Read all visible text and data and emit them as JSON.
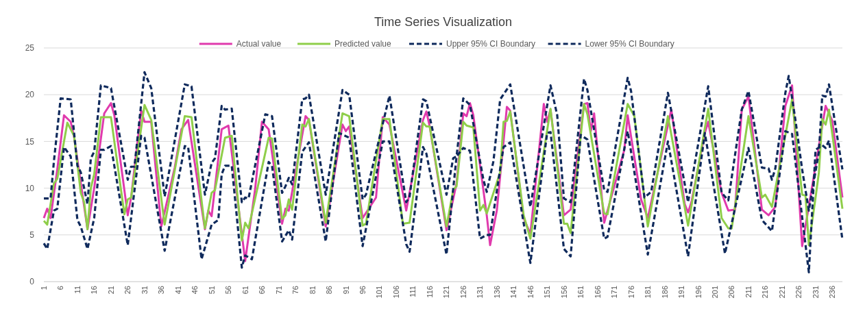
{
  "chart_data": {
    "type": "line",
    "title": "Time Series Visualization",
    "xlim": [
      1,
      239
    ],
    "xticks": [
      1,
      6,
      11,
      16,
      21,
      26,
      31,
      36,
      41,
      46,
      51,
      56,
      61,
      66,
      71,
      76,
      81,
      86,
      91,
      96,
      101,
      106,
      111,
      116,
      121,
      126,
      131,
      136,
      141,
      146,
      151,
      156,
      161,
      166,
      171,
      176,
      181,
      186,
      191,
      196,
      201,
      206,
      211,
      216,
      221,
      226,
      231,
      236
    ],
    "ylim": [
      0,
      25
    ],
    "yticks": [
      0,
      5,
      10,
      15,
      20,
      25
    ],
    "grid": "y",
    "legend": "top",
    "marker": "none",
    "series": [
      {
        "name": "Actual value",
        "color": "#e03aad",
        "line_style": "solid",
        "x": [
          1,
          2,
          3,
          5,
          7,
          9,
          10,
          14,
          16,
          19,
          21,
          22,
          26,
          27,
          30,
          31,
          33,
          36,
          40,
          42,
          44,
          49,
          50,
          51,
          54,
          56,
          61,
          64,
          66,
          68,
          72,
          73,
          74,
          79,
          80,
          85,
          90,
          91,
          92,
          96,
          100,
          102,
          104,
          109,
          114,
          115,
          116,
          121,
          124,
          126,
          127,
          128,
          129,
          133,
          134,
          136,
          139,
          140,
          144,
          146,
          150,
          151,
          152,
          156,
          158,
          162,
          163,
          164,
          165,
          168,
          174,
          175,
          179,
          181,
          188,
          192,
          193,
          194,
          198,
          199,
          203,
          205,
          207,
          209,
          211,
          215,
          217,
          219,
          222,
          224,
          227,
          234,
          236,
          239
        ],
        "values": [
          6.8,
          7.8,
          6.8,
          12,
          17.8,
          17.1,
          15.5,
          5.6,
          10,
          18,
          19.1,
          17.8,
          7.1,
          9,
          18.3,
          17.1,
          17.1,
          5.9,
          12.2,
          16.3,
          17.3,
          5.6,
          7.6,
          7,
          16.3,
          16.7,
          2.2,
          10,
          17.1,
          16.3,
          6.2,
          7.8,
          7.6,
          17.7,
          17.3,
          5.9,
          16.8,
          16.1,
          16.6,
          6.8,
          9,
          17.6,
          16.8,
          7.6,
          17.3,
          18.2,
          16.6,
          5.5,
          10.5,
          18,
          17.7,
          19.1,
          17.8,
          7.1,
          3.9,
          7.6,
          18.7,
          18.3,
          6.8,
          5.1,
          19,
          17.1,
          18.4,
          7.1,
          7.7,
          19,
          19.1,
          16.1,
          18,
          6.3,
          14.1,
          17.8,
          8.8,
          6.8,
          18.4,
          8.3,
          7.4,
          8.5,
          15.9,
          17.1,
          9.5,
          7.6,
          7.7,
          18.4,
          19.8,
          7.7,
          7.1,
          8,
          18.8,
          21,
          3.8,
          18.8,
          17.2,
          9
        ]
      },
      {
        "name": "Predicted value",
        "color": "#8fce4a",
        "line_style": "solid",
        "x": [
          1,
          2,
          4,
          5,
          8,
          10,
          12,
          13,
          14,
          15,
          16,
          18,
          21,
          25,
          26,
          27,
          31,
          33,
          37,
          43,
          45,
          49,
          51,
          52,
          55,
          57,
          60,
          61,
          62,
          68,
          69,
          72,
          73,
          74,
          75,
          78,
          79,
          80,
          85,
          90,
          92,
          96,
          97,
          102,
          104,
          108,
          110,
          114,
          115,
          116,
          121,
          123,
          124,
          126,
          127,
          129,
          131,
          132,
          133,
          137,
          138,
          139,
          140,
          144,
          146,
          152,
          156,
          157,
          158,
          162,
          163,
          168,
          169,
          175,
          177,
          181,
          187,
          193,
          199,
          203,
          205,
          206,
          211,
          215,
          216,
          218,
          224,
          227,
          228,
          229,
          231,
          232,
          233,
          234,
          235,
          239
        ],
        "values": [
          6.5,
          6.1,
          10.5,
          11,
          17,
          15.6,
          9.5,
          8.5,
          5.6,
          10,
          11.5,
          17.6,
          17.6,
          7.2,
          8.8,
          9,
          18.9,
          17.3,
          6.1,
          17.7,
          17.6,
          5.7,
          9.5,
          9.8,
          15.4,
          15.6,
          4.4,
          6.3,
          5.7,
          15.4,
          15.3,
          6.7,
          7.1,
          8.8,
          7.7,
          16.8,
          16.6,
          17.4,
          6.3,
          18,
          17.7,
          6,
          6.2,
          17.4,
          17.4,
          6.2,
          6.3,
          17,
          16.6,
          16.6,
          5.9,
          9.8,
          10.2,
          17.1,
          16.7,
          16.5,
          7.6,
          8.2,
          7.3,
          11.7,
          17.1,
          17.2,
          18.2,
          7.1,
          4.6,
          18.5,
          6.2,
          6.2,
          5.2,
          19,
          17.9,
          7.3,
          7.2,
          19,
          17.7,
          5.9,
          17.7,
          6,
          18.5,
          6.8,
          5.7,
          5.7,
          17.7,
          9,
          9.3,
          8,
          19.5,
          9.3,
          9.2,
          3.9,
          9,
          11.7,
          17.4,
          16.8,
          18.4,
          7.8
        ]
      },
      {
        "name": "Upper 95% CI Boundary",
        "color": "#0f2a5c",
        "line_style": "dashed",
        "x": [
          1,
          3,
          4,
          6,
          9,
          11,
          12,
          14,
          15,
          16,
          18,
          21,
          26,
          27,
          28,
          31,
          33,
          37,
          43,
          45,
          49,
          51,
          52,
          54,
          55,
          57,
          60,
          61,
          62,
          67,
          69,
          72,
          73,
          74,
          75,
          78,
          79,
          80,
          85,
          90,
          92,
          96,
          97,
          104,
          109,
          110,
          114,
          115,
          121,
          123,
          124,
          126,
          128,
          132,
          133,
          135,
          137,
          140,
          146,
          152,
          154,
          156,
          158,
          162,
          163,
          168,
          169,
          175,
          176,
          180,
          182,
          187,
          193,
          199,
          203,
          205,
          209,
          211,
          215,
          217,
          218,
          219,
          222,
          223,
          225,
          227,
          229,
          232,
          233,
          234,
          235,
          239
        ],
        "values": [
          8.9,
          8.9,
          12.9,
          19.6,
          19.5,
          12.4,
          11.7,
          8.3,
          13.2,
          13.9,
          21,
          20.7,
          10.9,
          12.3,
          12.3,
          22.4,
          20.7,
          9.1,
          21.1,
          20.9,
          9.3,
          12.7,
          13.2,
          18.8,
          18.4,
          18.5,
          8.5,
          9,
          8.9,
          17.9,
          17.7,
          9.5,
          10.2,
          11.1,
          10.4,
          19.5,
          19.6,
          20,
          9.3,
          20.5,
          20,
          8.8,
          9.3,
          19.9,
          8.5,
          9.1,
          19.5,
          19.3,
          9.3,
          13.2,
          13.4,
          19.6,
          18.9,
          10.9,
          9.6,
          12.9,
          19.5,
          21.1,
          8,
          21,
          17.8,
          8.9,
          8.5,
          21.7,
          20.5,
          9.8,
          9.6,
          21.8,
          20.4,
          9,
          9.6,
          20.2,
          8.5,
          20.9,
          9.5,
          8.7,
          18.4,
          20.4,
          12.2,
          12.1,
          10.9,
          12.1,
          20.2,
          22,
          17.3,
          12,
          7.6,
          13.9,
          19.9,
          19.8,
          21.1,
          12
        ]
      },
      {
        "name": "Lower 95% CI Boundary",
        "color": "#0f2a5c",
        "line_style": "dashed",
        "x": [
          1,
          2,
          4,
          5,
          7,
          9,
          11,
          12,
          14,
          16,
          18,
          19,
          21,
          26,
          30,
          31,
          37,
          43,
          44,
          48,
          51,
          53,
          54,
          55,
          57,
          60,
          61,
          63,
          68,
          69,
          72,
          74,
          75,
          78,
          80,
          85,
          89,
          92,
          96,
          102,
          104,
          109,
          110,
          114,
          115,
          121,
          124,
          126,
          128,
          131,
          133,
          134,
          138,
          140,
          145,
          146,
          151,
          152,
          156,
          158,
          161,
          163,
          168,
          169,
          175,
          181,
          187,
          193,
          198,
          204,
          211,
          215,
          216,
          218,
          222,
          224,
          229,
          231,
          233,
          234,
          235,
          239
        ],
        "values": [
          4.1,
          3.5,
          7.6,
          7.8,
          14.4,
          13.4,
          6.6,
          5.9,
          3.5,
          6.8,
          14.1,
          14.1,
          14.5,
          3.9,
          15.6,
          15.4,
          3.3,
          14.5,
          14.4,
          2.4,
          6.1,
          6.6,
          11.5,
          12.4,
          12.4,
          1.5,
          2.8,
          2.4,
          12.8,
          12.4,
          4.3,
          5.5,
          4.5,
          13.9,
          14.9,
          4.3,
          15.9,
          15.4,
          3.8,
          15,
          15,
          4,
          3.2,
          14.4,
          13.7,
          2.9,
          13.4,
          14.3,
          14,
          4.6,
          5,
          5,
          14.4,
          14.9,
          4.1,
          2,
          15.9,
          16,
          3.5,
          2.7,
          15.7,
          15.2,
          4.6,
          4.8,
          16.1,
          2.9,
          15,
          2.7,
          15.9,
          3,
          14.3,
          6.6,
          6.2,
          5.4,
          16.1,
          15.8,
          1,
          14.1,
          14.6,
          14.3,
          15.1,
          4.5
        ]
      }
    ]
  }
}
